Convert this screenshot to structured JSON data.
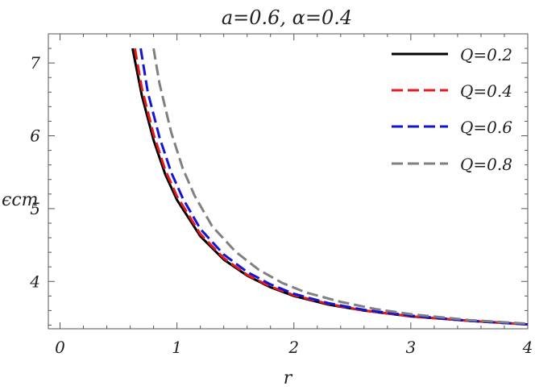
{
  "chart_data": {
    "type": "line",
    "title": "a=0.6, α=0.4",
    "xlabel": "r",
    "ylabel": "ϵcm",
    "xlim": [
      -0.1,
      4.0
    ],
    "ylim": [
      3.35,
      7.4
    ],
    "x_ticks": [
      0,
      1,
      2,
      3,
      4
    ],
    "y_ticks": [
      4,
      5,
      6,
      7
    ],
    "grid": false,
    "legend_position": "top-right",
    "series": [
      {
        "name": "Q=0.2",
        "color": "#000000",
        "dash": "solid",
        "x": [
          0.62,
          0.7,
          0.8,
          0.9,
          1.0,
          1.2,
          1.4,
          1.6,
          1.8,
          2.0,
          2.3,
          2.6,
          3.0,
          3.5,
          4.0
        ],
        "y": [
          7.2,
          6.55,
          5.94,
          5.47,
          5.12,
          4.62,
          4.3,
          4.08,
          3.92,
          3.8,
          3.68,
          3.6,
          3.52,
          3.46,
          3.41
        ]
      },
      {
        "name": "Q=0.4",
        "color": "#e41a1c",
        "dash": "dashed",
        "x": [
          0.64,
          0.7,
          0.8,
          0.9,
          1.0,
          1.2,
          1.4,
          1.6,
          1.8,
          2.0,
          2.3,
          2.6,
          3.0,
          3.5,
          4.0
        ],
        "y": [
          7.2,
          6.65,
          6.02,
          5.53,
          5.17,
          4.65,
          4.32,
          4.09,
          3.93,
          3.81,
          3.69,
          3.6,
          3.52,
          3.46,
          3.41
        ]
      },
      {
        "name": "Q=0.6",
        "color": "#1414d9",
        "dash": "dashed",
        "x": [
          0.69,
          0.75,
          0.85,
          0.95,
          1.05,
          1.2,
          1.4,
          1.6,
          1.8,
          2.0,
          2.3,
          2.6,
          3.0,
          3.5,
          4.0
        ],
        "y": [
          7.2,
          6.6,
          5.98,
          5.5,
          5.14,
          4.72,
          4.37,
          4.13,
          3.96,
          3.83,
          3.7,
          3.61,
          3.53,
          3.46,
          3.41
        ]
      },
      {
        "name": "Q=0.8",
        "color": "#808080",
        "dash": "dashed",
        "x": [
          0.8,
          0.85,
          0.95,
          1.05,
          1.15,
          1.3,
          1.5,
          1.7,
          1.9,
          2.1,
          2.4,
          2.7,
          3.0,
          3.5,
          4.0
        ],
        "y": [
          7.2,
          6.72,
          6.05,
          5.55,
          5.18,
          4.76,
          4.41,
          4.16,
          3.98,
          3.85,
          3.72,
          3.62,
          3.55,
          3.47,
          3.42
        ]
      }
    ]
  }
}
